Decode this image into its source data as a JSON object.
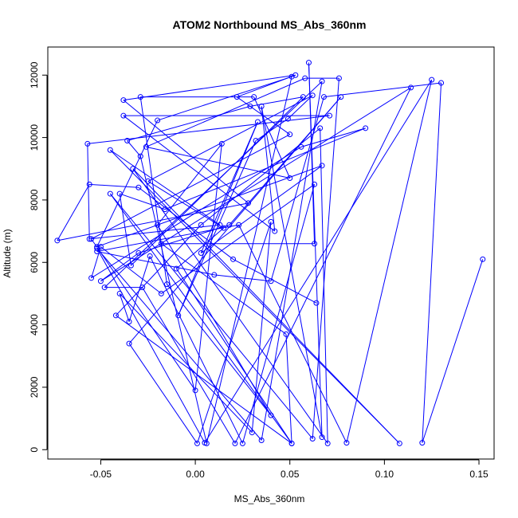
{
  "chart_data": {
    "type": "scatter",
    "title": "ATOM2 Northbound MS_Abs_360nm",
    "xlabel": "MS_Abs_360nm",
    "ylabel": "Altitude (m)",
    "xlim": [
      -0.078,
      0.158
    ],
    "ylim": [
      -300,
      12900
    ],
    "xticks": [
      -0.05,
      0.0,
      0.05,
      0.1,
      0.15
    ],
    "xtick_labels": [
      "-0.05",
      "0.00",
      "0.05",
      "0.10",
      "0.15"
    ],
    "yticks": [
      0,
      2000,
      4000,
      6000,
      8000,
      10000,
      12000
    ],
    "ytick_labels": [
      "0",
      "2000",
      "4000",
      "6000",
      "8000",
      "10000",
      "12000"
    ],
    "grid": false,
    "legend": "none",
    "mode": "lines+markers",
    "color": "#0000ff",
    "series": [
      {
        "x": [
          0.152,
          0.12,
          0.13,
          0.068,
          0.04,
          0.01,
          -0.052,
          0.023,
          0.08,
          0.125,
          0.005,
          -0.052,
          0.035,
          0.067,
          -0.048,
          -0.028,
          0.021,
          0.114,
          -0.05,
          -0.03,
          0.018,
          0.077,
          -0.035,
          0.001,
          0.04,
          0.03,
          -0.04,
          -0.035,
          -0.024,
          0.025,
          0.063,
          -0.018,
          -0.05,
          -0.055,
          0.056,
          0.09,
          -0.016,
          -0.04,
          -0.034,
          0.057,
          0.029,
          -0.036,
          -0.029,
          0.006,
          0.051,
          -0.02,
          -0.052,
          0.067,
          0.003,
          0.033,
          -0.009,
          0.032,
          0.049,
          0.062,
          -0.025,
          0.015,
          -0.01,
          0.051,
          -0.042,
          0.003,
          0.066,
          0.07,
          -0.033,
          0.108,
          -0.045,
          0.013,
          -0.056,
          -0.057,
          0.071,
          -0.038,
          0.042,
          0.035,
          0.067,
          0.06,
          0.063,
          -0.018,
          0.048,
          0.051,
          -0.045,
          0.062,
          0.076,
          0.058,
          -0.026,
          0.05,
          0.031,
          -0.029,
          -0.015,
          0.04,
          -0.02,
          0.014,
          0.0,
          -0.055,
          0.05,
          0.022,
          0.053,
          -0.038,
          0.028,
          -0.073,
          -0.056,
          -0.03,
          0.02,
          0.064
        ],
        "y": [
          6100,
          220,
          11750,
          11300,
          5400,
          5600,
          6350,
          7200,
          220,
          11850,
          220,
          6450,
          300,
          11800,
          5200,
          5200,
          200,
          11600,
          5400,
          6300,
          7200,
          11300,
          3400,
          200,
          7300,
          550,
          5000,
          4100,
          6200,
          200,
          8500,
          5000,
          6500,
          5500,
          9700,
          10300,
          7700,
          8200,
          5900,
          11300,
          11000,
          9900,
          9400,
          200,
          11950,
          10550,
          6500,
          9100,
          6300,
          10500,
          4300,
          9900,
          10600,
          11350,
          8600,
          7100,
          5800,
          200,
          4300,
          7200,
          10300,
          200,
          9000,
          200,
          9600,
          7200,
          6750,
          9800,
          10700,
          10700,
          7000,
          11000,
          400,
          12400,
          6600,
          6600,
          3700,
          200,
          8200,
          350,
          11900,
          11900,
          9700,
          8700,
          11300,
          11300,
          5300,
          1100,
          7200,
          9800,
          1900,
          6750,
          10100,
          11300,
          12000,
          11200,
          7900,
          6700,
          8500,
          8400,
          6100,
          4700
        ]
      }
    ]
  }
}
